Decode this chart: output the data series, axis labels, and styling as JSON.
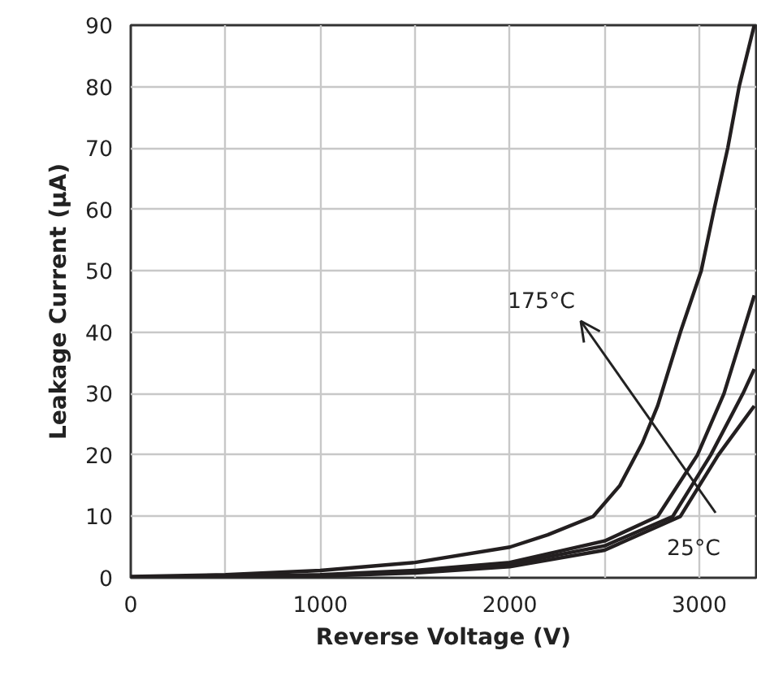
{
  "chart_data": {
    "type": "line",
    "xlabel": "Reverse Voltage (V)",
    "ylabel": "Leakage Current (μA)",
    "xlim": [
      0,
      3300
    ],
    "ylim": [
      0,
      90
    ],
    "xticks": [
      0,
      {
        "value": 500,
        "label": null
      },
      1000,
      {
        "value": 1500,
        "label": null
      },
      2000,
      {
        "value": 2500,
        "label": null
      },
      3000
    ],
    "yticks": [
      0,
      10,
      20,
      30,
      40,
      50,
      60,
      70,
      80,
      90
    ],
    "grid": true,
    "marker": "none",
    "line_style": "solid",
    "series": [
      {
        "color": "#231f20",
        "x": [
          0,
          500,
          1000,
          1500,
          2000,
          2200,
          2440,
          2580,
          2700,
          2780,
          2900,
          3010,
          3078,
          3150,
          3210,
          3290
        ],
        "values": [
          0.2,
          0.5,
          1.2,
          2.5,
          5,
          7,
          10,
          15,
          22,
          28,
          40,
          50,
          60,
          70,
          80,
          90
        ]
      },
      {
        "color": "#231f20",
        "x": [
          0,
          500,
          1000,
          1500,
          2000,
          2500,
          2780,
          2990,
          3130,
          3230,
          3290
        ],
        "values": [
          0,
          0.2,
          0.5,
          1.2,
          2.5,
          6,
          10,
          20,
          30,
          40,
          46
        ]
      },
      {
        "color": "#231f20",
        "x": [
          0,
          1000,
          1500,
          2000,
          2500,
          2860,
          3060,
          3230,
          3290
        ],
        "values": [
          0,
          0.4,
          1,
          2.2,
          5.2,
          10,
          20,
          30,
          34
        ]
      },
      {
        "color": "#231f20",
        "x": [
          0,
          1000,
          1500,
          2000,
          2500,
          2900,
          3100,
          3290
        ],
        "values": [
          0,
          0.3,
          0.8,
          1.8,
          4.5,
          10,
          20,
          28
        ]
      }
    ],
    "annotations": [
      "175°C",
      "25°C"
    ]
  }
}
